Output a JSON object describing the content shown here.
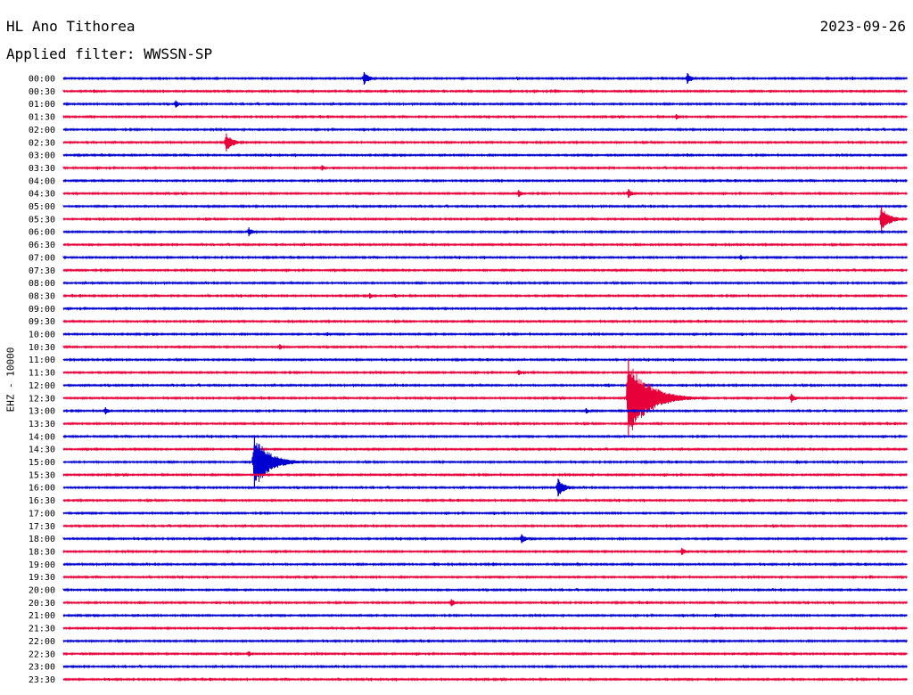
{
  "header": {
    "station": "HL Ano Tithorea",
    "date": "2023-09-26",
    "filter_text": "Applied filter: WWSSN-SP"
  },
  "channel_label": "EHZ - 10000",
  "colors": {
    "blue": "#0000d0",
    "red": "#e8003a"
  },
  "chart_data": {
    "type": "line",
    "title": "HL Ano Tithorea",
    "subtitle": "Applied filter: WWSSN-SP",
    "ylabel": "EHZ - 10000",
    "xlabel": "",
    "grid": false,
    "rows": [
      "00:00",
      "00:30",
      "01:00",
      "01:30",
      "02:00",
      "02:30",
      "03:00",
      "03:30",
      "04:00",
      "04:30",
      "05:00",
      "05:30",
      "06:00",
      "06:30",
      "07:00",
      "07:30",
      "08:00",
      "08:30",
      "09:00",
      "09:30",
      "10:00",
      "10:30",
      "11:00",
      "11:30",
      "12:00",
      "12:30",
      "13:00",
      "13:30",
      "14:00",
      "14:30",
      "15:00",
      "15:30",
      "16:00",
      "16:30",
      "17:00",
      "17:30",
      "18:00",
      "18:30",
      "19:00",
      "19:30",
      "20:00",
      "20:30",
      "21:00",
      "21:30",
      "22:00",
      "22:30",
      "23:00",
      "23:30"
    ],
    "row_colors": [
      "blue",
      "red",
      "blue",
      "red",
      "blue",
      "red",
      "blue",
      "red",
      "blue",
      "red",
      "blue",
      "red",
      "blue",
      "red",
      "blue",
      "red",
      "blue",
      "red",
      "blue",
      "red",
      "blue",
      "red",
      "blue",
      "red",
      "blue",
      "red",
      "blue",
      "red",
      "blue",
      "red",
      "blue",
      "red",
      "blue",
      "red",
      "blue",
      "red",
      "blue",
      "red",
      "blue",
      "red",
      "blue",
      "red",
      "blue",
      "red",
      "blue",
      "red",
      "blue",
      "red"
    ],
    "x_minutes": [
      0,
      30
    ],
    "events": [
      {
        "row": 0,
        "t": 10.7,
        "amp": 7
      },
      {
        "row": 0,
        "t": 22.2,
        "amp": 6
      },
      {
        "row": 1,
        "t": 1.1,
        "amp": 2
      },
      {
        "row": 1,
        "t": 17.5,
        "amp": 2
      },
      {
        "row": 2,
        "t": 4.0,
        "amp": 4
      },
      {
        "row": 3,
        "t": 21.8,
        "amp": 3
      },
      {
        "row": 5,
        "t": 5.8,
        "amp": 10
      },
      {
        "row": 6,
        "t": 22.2,
        "amp": 2
      },
      {
        "row": 7,
        "t": 9.2,
        "amp": 3
      },
      {
        "row": 9,
        "t": 16.2,
        "amp": 4
      },
      {
        "row": 9,
        "t": 20.1,
        "amp": 5
      },
      {
        "row": 11,
        "t": 29.1,
        "amp": 14
      },
      {
        "row": 12,
        "t": 6.6,
        "amp": 5
      },
      {
        "row": 14,
        "t": 24.1,
        "amp": 3
      },
      {
        "row": 17,
        "t": 10.9,
        "amp": 3
      },
      {
        "row": 17,
        "t": 11.8,
        "amp": 2
      },
      {
        "row": 20,
        "t": 9.4,
        "amp": 2
      },
      {
        "row": 21,
        "t": 7.7,
        "amp": 3
      },
      {
        "row": 23,
        "t": 16.2,
        "amp": 3
      },
      {
        "row": 24,
        "t": 19.4,
        "amp": 2
      },
      {
        "row": 25,
        "t": 20.1,
        "amp": 44
      },
      {
        "row": 25,
        "t": 25.9,
        "amp": 5
      },
      {
        "row": 26,
        "t": 1.5,
        "amp": 4
      },
      {
        "row": 26,
        "t": 18.6,
        "amp": 3
      },
      {
        "row": 30,
        "t": 6.8,
        "amp": 30
      },
      {
        "row": 30,
        "t": 26.1,
        "amp": 2
      },
      {
        "row": 32,
        "t": 17.6,
        "amp": 10
      },
      {
        "row": 36,
        "t": 16.3,
        "amp": 5
      },
      {
        "row": 37,
        "t": 22.0,
        "amp": 4
      },
      {
        "row": 38,
        "t": 13.2,
        "amp": 2
      },
      {
        "row": 38,
        "t": 15.3,
        "amp": 2
      },
      {
        "row": 38,
        "t": 18.3,
        "amp": 2
      },
      {
        "row": 39,
        "t": 28.7,
        "amp": 2
      },
      {
        "row": 41,
        "t": 13.8,
        "amp": 4
      },
      {
        "row": 42,
        "t": 23.2,
        "amp": 2
      },
      {
        "row": 45,
        "t": 6.6,
        "amp": 3
      }
    ]
  }
}
